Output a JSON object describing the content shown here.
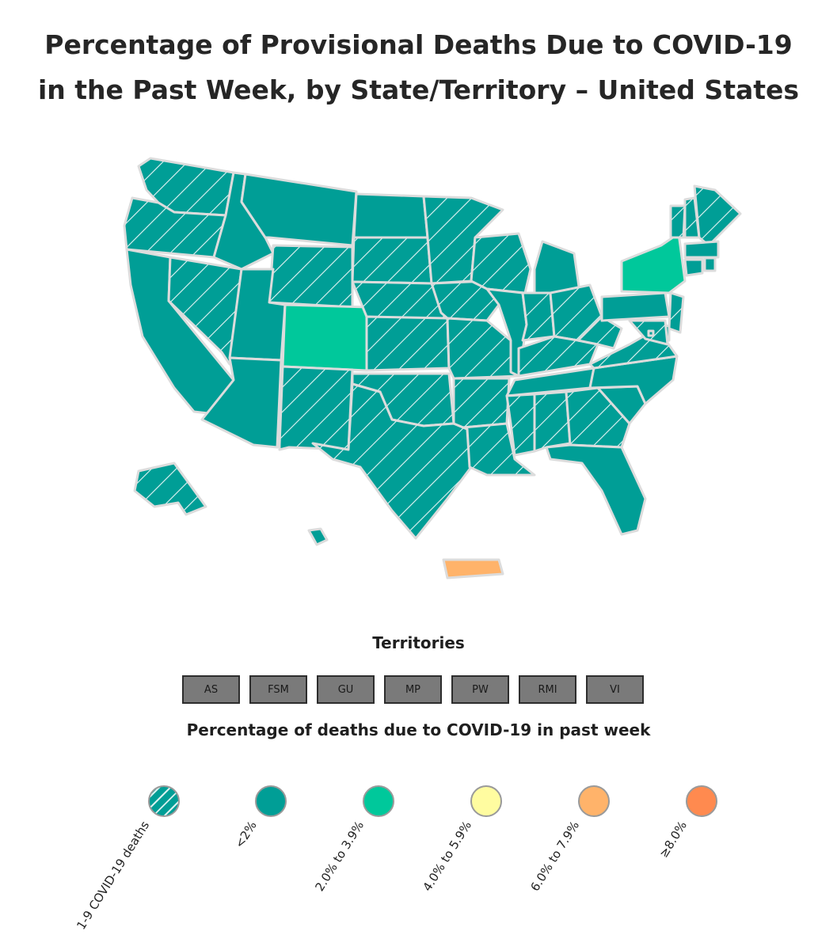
{
  "title": "Percentage of Provisional Deaths Due to COVID-19 in the Past Week, by State/Territory – United States",
  "territories": {
    "heading": "Territories",
    "buttons": [
      "AS",
      "FSM",
      "GU",
      "MP",
      "PW",
      "RMI",
      "VI"
    ]
  },
  "legend": {
    "heading": "Percentage of deaths due to COVID-19 in past week",
    "items": [
      {
        "label": "1-9 COVID-19 deaths",
        "color": "#009e96",
        "hatched": true
      },
      {
        "label": "<2%",
        "color": "#009e96",
        "hatched": false
      },
      {
        "label": "2.0% to 3.9%",
        "color": "#00c89b",
        "hatched": false
      },
      {
        "label": "4.0% to 5.9%",
        "color": "#fffca0",
        "hatched": false
      },
      {
        "label": "6.0% to 7.9%",
        "color": "#ffb36a",
        "hatched": false
      },
      {
        "label": "≥8.0%",
        "color": "#ff8a4f",
        "hatched": false
      }
    ]
  },
  "map_data": {
    "hatched_1_to_9_deaths": [
      "WA",
      "OR",
      "NV",
      "WY",
      "SD",
      "NE",
      "MN",
      "WI",
      "IA",
      "KS",
      "MO",
      "OK",
      "NM",
      "TX",
      "AR",
      "LA",
      "MS",
      "AL",
      "GA",
      "IN",
      "OH",
      "KY",
      "WV",
      "VA",
      "NH",
      "ME",
      "VT",
      "NJ",
      "DE",
      "MD",
      "AK"
    ],
    "under_2pct": [
      "CA",
      "ID",
      "MT",
      "ND",
      "UT",
      "AZ",
      "IL",
      "MI",
      "PA",
      "TN",
      "NC",
      "SC",
      "FL",
      "MA",
      "CT",
      "RI",
      "HI",
      "DC"
    ],
    "from_2_to_3_9pct": [
      "CO",
      "NY"
    ],
    "from_6_to_7_9pct": [
      "PR"
    ]
  }
}
